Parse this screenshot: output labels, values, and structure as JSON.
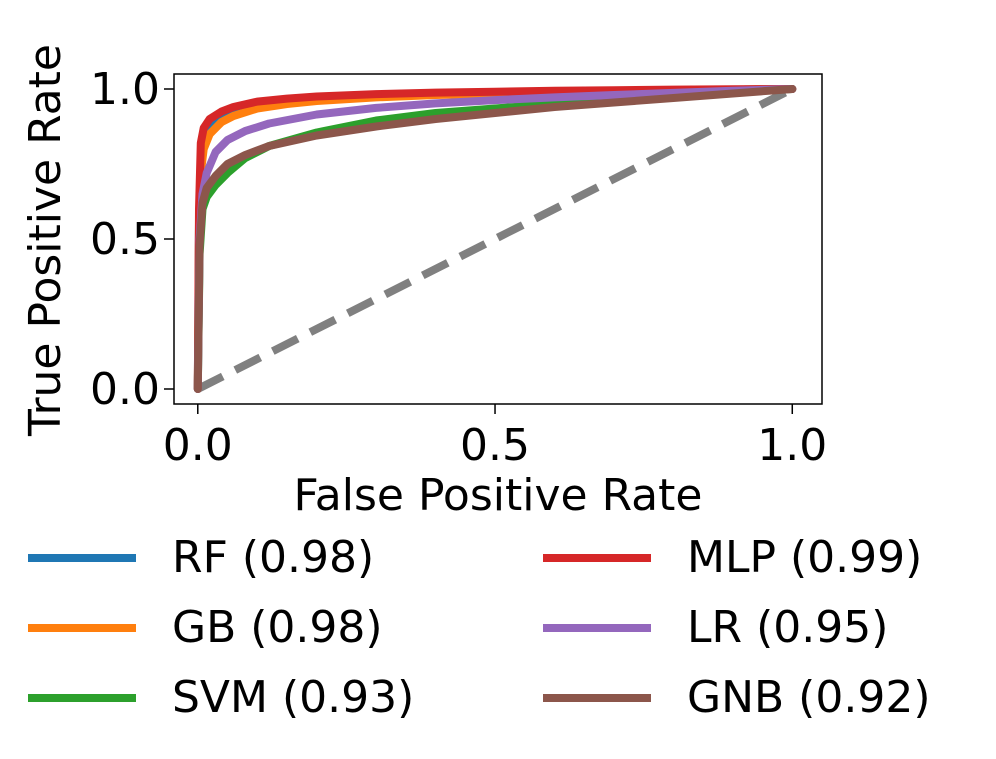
{
  "chart_data": {
    "type": "line",
    "title": "",
    "xlabel": "False Positive Rate",
    "ylabel": "True Positive Rate",
    "xlim": [
      -0.04,
      1.05
    ],
    "ylim": [
      -0.05,
      1.05
    ],
    "xticks": [
      0.0,
      0.5,
      1.0
    ],
    "yticks": [
      0.0,
      0.5,
      1.0
    ],
    "xtick_labels": [
      "0.0",
      "0.5",
      "1.0"
    ],
    "ytick_labels": [
      "0.0",
      "0.5",
      "1.0"
    ],
    "grid": false,
    "legend_position": "below, two columns",
    "diagonal": {
      "x": [
        0,
        1
      ],
      "y": [
        0,
        1
      ],
      "color": "#808080",
      "style": "dashed"
    },
    "series": [
      {
        "name": "RF (0.98)",
        "color": "#1f77b4",
        "x": [
          0,
          0.002,
          0.005,
          0.01,
          0.02,
          0.04,
          0.06,
          0.1,
          0.15,
          0.2,
          0.3,
          0.4,
          0.5,
          0.6,
          0.7,
          0.8,
          0.9,
          1.0
        ],
        "y": [
          0,
          0.55,
          0.75,
          0.82,
          0.87,
          0.905,
          0.925,
          0.945,
          0.958,
          0.966,
          0.976,
          0.982,
          0.986,
          0.99,
          0.993,
          0.995,
          0.998,
          1.0
        ]
      },
      {
        "name": "GB (0.98)",
        "color": "#ff7f0e",
        "x": [
          0,
          0.002,
          0.005,
          0.01,
          0.02,
          0.04,
          0.06,
          0.1,
          0.15,
          0.2,
          0.3,
          0.4,
          0.5,
          0.6,
          0.7,
          0.8,
          0.9,
          1.0
        ],
        "y": [
          0,
          0.52,
          0.72,
          0.8,
          0.85,
          0.89,
          0.91,
          0.935,
          0.95,
          0.96,
          0.972,
          0.98,
          0.985,
          0.989,
          0.992,
          0.995,
          0.998,
          1.0
        ]
      },
      {
        "name": "SVM (0.93)",
        "color": "#2ca02c",
        "x": [
          0,
          0.003,
          0.008,
          0.015,
          0.03,
          0.05,
          0.08,
          0.12,
          0.2,
          0.3,
          0.4,
          0.5,
          0.6,
          0.7,
          0.8,
          0.9,
          1.0
        ],
        "y": [
          0,
          0.45,
          0.6,
          0.64,
          0.68,
          0.72,
          0.77,
          0.81,
          0.855,
          0.895,
          0.92,
          0.935,
          0.95,
          0.965,
          0.977,
          0.99,
          1.0
        ]
      },
      {
        "name": "MLP (0.99)",
        "color": "#d62728",
        "x": [
          0,
          0.002,
          0.005,
          0.01,
          0.02,
          0.04,
          0.06,
          0.1,
          0.15,
          0.2,
          0.3,
          0.4,
          0.5,
          0.6,
          0.7,
          0.8,
          0.9,
          1.0
        ],
        "y": [
          0,
          0.6,
          0.82,
          0.87,
          0.9,
          0.925,
          0.94,
          0.958,
          0.968,
          0.975,
          0.983,
          0.988,
          0.991,
          0.994,
          0.996,
          0.998,
          0.999,
          1.0
        ]
      },
      {
        "name": "LR (0.95)",
        "color": "#9467bd",
        "x": [
          0,
          0.003,
          0.008,
          0.015,
          0.03,
          0.05,
          0.08,
          0.12,
          0.2,
          0.3,
          0.4,
          0.5,
          0.6,
          0.7,
          0.8,
          0.9,
          1.0
        ],
        "y": [
          0,
          0.5,
          0.65,
          0.72,
          0.79,
          0.83,
          0.86,
          0.885,
          0.915,
          0.937,
          0.952,
          0.963,
          0.972,
          0.98,
          0.987,
          0.994,
          1.0
        ]
      },
      {
        "name": "GNB (0.92)",
        "color": "#8c564b",
        "x": [
          0,
          0.003,
          0.008,
          0.015,
          0.03,
          0.05,
          0.08,
          0.12,
          0.2,
          0.3,
          0.4,
          0.5,
          0.6,
          0.7,
          0.8,
          0.9,
          1.0
        ],
        "y": [
          0,
          0.48,
          0.62,
          0.67,
          0.71,
          0.75,
          0.78,
          0.81,
          0.845,
          0.875,
          0.9,
          0.92,
          0.94,
          0.955,
          0.97,
          0.985,
          1.0
        ]
      }
    ]
  },
  "legend": {
    "items": [
      {
        "label": "RF (0.98)",
        "color": "#1f77b4"
      },
      {
        "label": "GB (0.98)",
        "color": "#ff7f0e"
      },
      {
        "label": "SVM (0.93)",
        "color": "#2ca02c"
      },
      {
        "label": "MLP (0.99)",
        "color": "#d62728"
      },
      {
        "label": "LR (0.95)",
        "color": "#9467bd"
      },
      {
        "label": "GNB (0.92)",
        "color": "#8c564b"
      }
    ]
  }
}
